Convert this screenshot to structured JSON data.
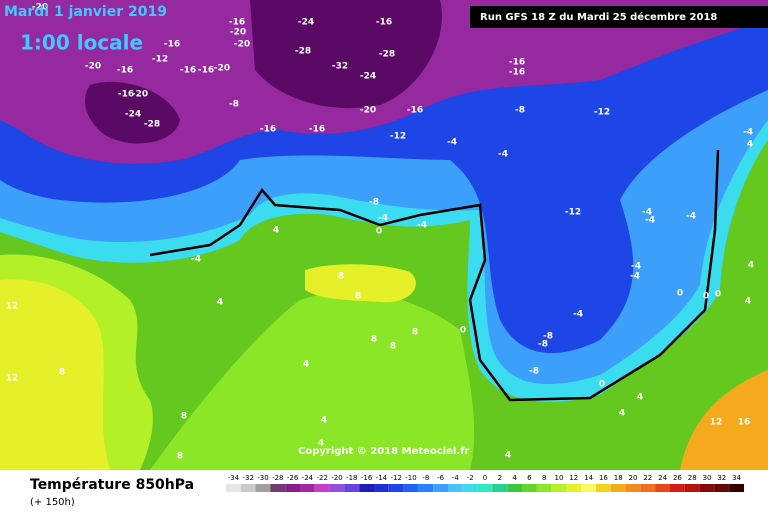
{
  "header": {
    "date": "Mardi 1 janvier 2019",
    "time": "1:00 locale",
    "run": "Run GFS 18 Z du Mardi 25 décembre 2018"
  },
  "copyright": "Copyright © 2018 Meteociel.fr",
  "legend": {
    "title": "Température 850hPa",
    "subtitle": "(+ 150h)"
  },
  "scale": {
    "labels": [
      -34,
      -32,
      -30,
      -28,
      -26,
      -24,
      -22,
      -20,
      -18,
      -16,
      -14,
      -12,
      -10,
      -8,
      -6,
      -4,
      -2,
      0,
      2,
      4,
      6,
      8,
      10,
      12,
      14,
      16,
      18,
      20,
      22,
      24,
      26,
      28,
      30,
      32,
      34
    ],
    "colors": [
      "#e6e6e6",
      "#c8c8c8",
      "#a0a0a0",
      "#6e3c6e",
      "#8c1e8c",
      "#a028a0",
      "#c83cc8",
      "#9650dc",
      "#6446dc",
      "#1e1eb4",
      "#1e32d2",
      "#1e46e6",
      "#1e64f0",
      "#2882f5",
      "#3ca0fa",
      "#46c3fa",
      "#3cdcf0",
      "#32e6c8",
      "#28d28c",
      "#3cc83c",
      "#64d228",
      "#8ce628",
      "#b4f028",
      "#e6f028",
      "#fafa64",
      "#f5d21e",
      "#f5aa1e",
      "#f08c1e",
      "#f06e1e",
      "#e64614",
      "#d21e14",
      "#b4140a",
      "#8c0a0a",
      "#640a0a",
      "#320000"
    ]
  },
  "map": {
    "contour_labels": [
      -20,
      -16,
      -24,
      -16,
      -20,
      -20,
      -28,
      -28,
      -16,
      -12,
      -20,
      -16,
      -16,
      -16,
      -20,
      -32,
      -24,
      -16,
      -16,
      -8,
      -12,
      -16,
      -20,
      -8,
      -24,
      -28,
      -20,
      -16,
      -12,
      -16,
      -16,
      -4,
      -4,
      4,
      -4,
      -8,
      -12,
      -4,
      0,
      -4,
      4,
      -4,
      -4,
      -4,
      -4,
      -4,
      -4,
      -4,
      -8,
      -8,
      8,
      8,
      4,
      12,
      4,
      12,
      8,
      8,
      8,
      4,
      4,
      4,
      4,
      4,
      12,
      16,
      0,
      0,
      0,
      0,
      0,
      8,
      8,
      8,
      4,
      -8,
      4
    ]
  }
}
